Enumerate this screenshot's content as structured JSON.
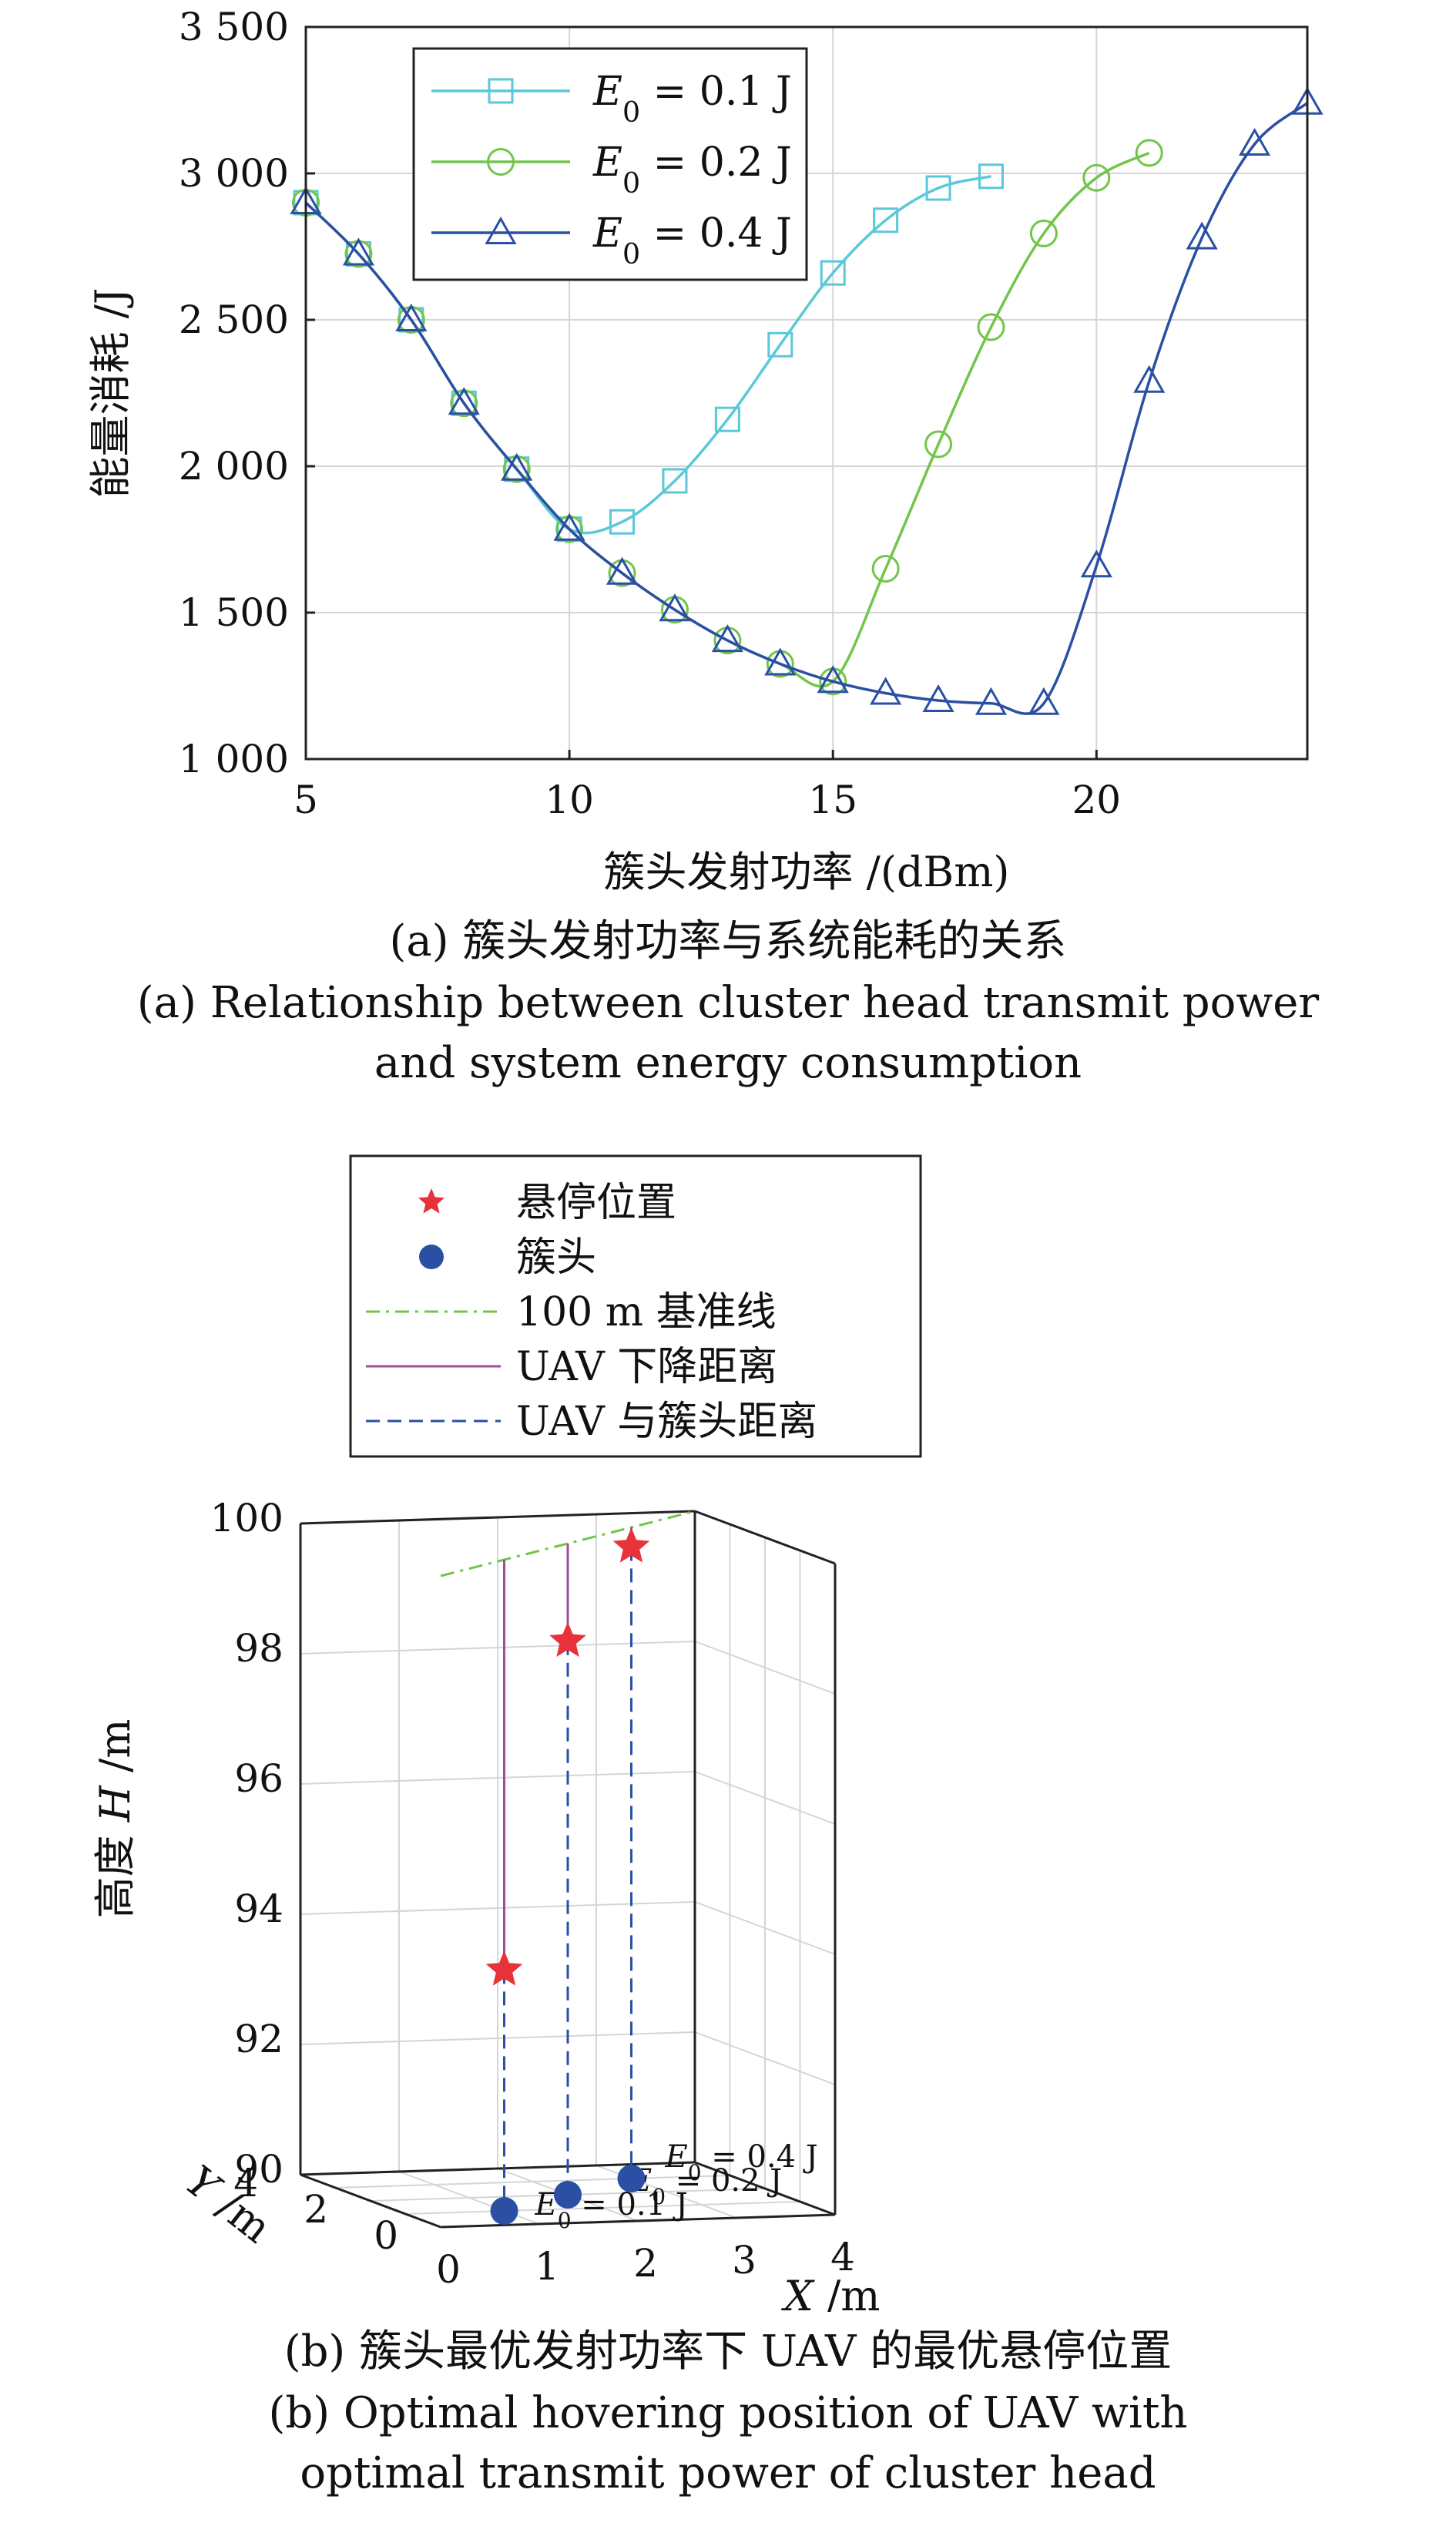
{
  "chart_data": [
    {
      "type": "line",
      "xlabel": "簇头发射功率 /(dBm)",
      "ylabel": "能量消耗 /J",
      "xlim": [
        5,
        24
      ],
      "ylim": [
        1000,
        3500
      ],
      "xticks": [
        5,
        10,
        15,
        20
      ],
      "xtick_labels": [
        "5",
        "10",
        "15",
        "20"
      ],
      "yticks": [
        1000,
        1500,
        2000,
        2500,
        3000,
        3500
      ],
      "ytick_labels": [
        "1 000",
        "1 500",
        "2 000",
        "2 500",
        "3 000",
        "3 500"
      ],
      "grid": true,
      "legend_position": "top-left",
      "series": [
        {
          "name": "E0 = 0.1 J",
          "legend_main": "E",
          "legend_sub": "0",
          "legend_rest": " = 0.1 J",
          "marker": "square",
          "color": "#5ac8d8",
          "x": [
            5,
            6,
            7,
            8,
            9,
            10,
            11,
            12,
            13,
            14,
            15,
            16,
            17,
            18
          ],
          "y": [
            2900,
            2725,
            2500,
            2215,
            1990,
            1785,
            1810,
            1950,
            2160,
            2415,
            2660,
            2840,
            2950,
            2990
          ]
        },
        {
          "name": "E0 = 0.2 J",
          "legend_main": "E",
          "legend_sub": "0",
          "legend_rest": " = 0.2 J",
          "marker": "circle",
          "color": "#72c54a",
          "x": [
            5,
            6,
            7,
            8,
            9,
            10,
            11,
            12,
            13,
            14,
            15,
            16,
            17,
            18,
            19,
            20,
            21
          ],
          "y": [
            2900,
            2725,
            2500,
            2215,
            1990,
            1785,
            1635,
            1510,
            1405,
            1325,
            1265,
            1650,
            2075,
            2475,
            2795,
            2985,
            3070
          ]
        },
        {
          "name": "E0 = 0.4 J",
          "legend_main": "E",
          "legend_sub": "0",
          "legend_rest": " = 0.4 J",
          "marker": "triangle",
          "color": "#2a4fa3",
          "x": [
            5,
            6,
            7,
            8,
            9,
            10,
            11,
            12,
            13,
            14,
            15,
            16,
            17,
            18,
            19,
            20,
            21,
            22,
            23,
            24
          ],
          "y": [
            2900,
            2725,
            2500,
            2215,
            1990,
            1785,
            1635,
            1510,
            1405,
            1325,
            1265,
            1225,
            1200,
            1190,
            1190,
            1660,
            2290,
            2780,
            3100,
            3240
          ]
        }
      ]
    },
    {
      "type": "scatter",
      "projection": "3d",
      "xlabel": "X /m",
      "ylabel": "Y /m",
      "zlabel": "高度 H /m",
      "xlim": [
        0,
        4
      ],
      "ylim": [
        0,
        4
      ],
      "zlim": [
        90,
        100
      ],
      "xticks": [
        0,
        1,
        2,
        3,
        4
      ],
      "yticks": [
        0,
        2,
        4
      ],
      "zticks": [
        90,
        92,
        94,
        96,
        98,
        100
      ],
      "grid": true,
      "legend_position": "top-left",
      "legend": [
        {
          "label": "悬停位置",
          "symbol": "star",
          "color": "#e8323a"
        },
        {
          "label": "簇头",
          "symbol": "dot",
          "color": "#2a4fa3"
        },
        {
          "label": "100 m 基准线",
          "symbol": "dashdot",
          "color": "#72c54a"
        },
        {
          "label": "UAV 下降距离",
          "symbol": "solid",
          "color": "#9b4f9a"
        },
        {
          "label": "UAV 与簇头距离",
          "symbol": "dashed",
          "color": "#2a4fa3"
        }
      ],
      "points": [
        {
          "label_main": "E",
          "label_sub": "0",
          "label_rest": " = 0.1 J",
          "x": 1,
          "y": 1,
          "hover_z": 93.7
        },
        {
          "label_main": "E",
          "label_sub": "0",
          "label_rest": " = 0.2 J",
          "x": 2,
          "y": 2,
          "hover_z": 98.5
        },
        {
          "label_main": "E",
          "label_sub": "0",
          "label_rest": " = 0.4 J",
          "x": 3,
          "y": 3,
          "hover_z": 99.7
        }
      ]
    }
  ],
  "captions": {
    "a_zh": "(a) 簇头发射功率与系统能耗的关系",
    "a_en_1": "(a) Relationship between cluster head transmit power",
    "a_en_2": "and system energy consumption",
    "b_zh": "(b) 簇头最优发射功率下 UAV 的最优悬停位置",
    "b_en_1": "(b)  Optimal hovering position of UAV with",
    "b_en_2": "optimal transmit power of cluster head"
  }
}
